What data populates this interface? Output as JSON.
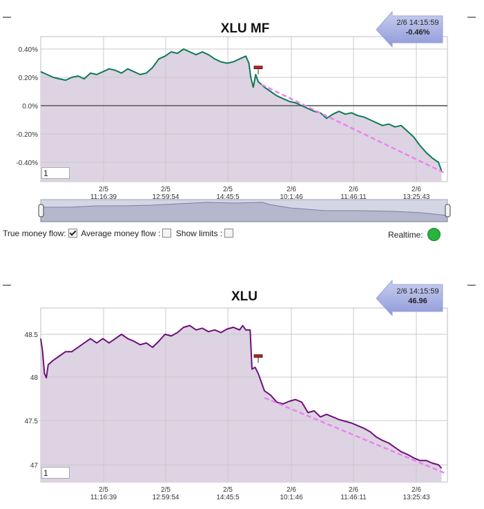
{
  "charts_meta": {
    "x_ticks": [
      {
        "date": "2/5",
        "time": "11:16:39"
      },
      {
        "date": "2/5",
        "time": "12:59:54"
      },
      {
        "date": "2/5",
        "time": "14:45:5"
      },
      {
        "date": "2/6",
        "time": "10:1:46"
      },
      {
        "date": "2/6",
        "time": "11:46:11"
      },
      {
        "date": "2/6",
        "time": "13:25:43"
      }
    ]
  },
  "controls": {
    "true_mf_label": "True money flow:",
    "avg_mf_label": "Average money flow :",
    "show_limits_label": "Show limits :",
    "realtime_label": "Realtime:",
    "true_mf_checked": true,
    "avg_mf_checked": false,
    "show_limits_checked": false,
    "realtime_color": "#27b33c"
  },
  "chart_data": [
    {
      "type": "area",
      "title": "XLU MF",
      "xlabel": "",
      "ylabel": "",
      "yticks": [
        "0.40%",
        "0.20%",
        "0.0%",
        "-0.20%",
        "-0.40%"
      ],
      "ylim": [
        -0.5,
        0.42
      ],
      "line_color": "#0a7a55",
      "fill_color": "#ddd3e3",
      "zero_line": 0,
      "callout": {
        "date_time": "2/6 14:15:59",
        "value": "-0.46%"
      },
      "input_value": "1",
      "points": [
        [
          0,
          0.24
        ],
        [
          0.1,
          0.22
        ],
        [
          0.2,
          0.2
        ],
        [
          0.3,
          0.19
        ],
        [
          0.4,
          0.18
        ],
        [
          0.5,
          0.2
        ],
        [
          0.6,
          0.21
        ],
        [
          0.7,
          0.19
        ],
        [
          0.8,
          0.23
        ],
        [
          0.9,
          0.22
        ],
        [
          1.0,
          0.24
        ],
        [
          1.1,
          0.26
        ],
        [
          1.2,
          0.25
        ],
        [
          1.3,
          0.23
        ],
        [
          1.4,
          0.26
        ],
        [
          1.5,
          0.24
        ],
        [
          1.6,
          0.22
        ],
        [
          1.7,
          0.23
        ],
        [
          1.8,
          0.27
        ],
        [
          1.9,
          0.33
        ],
        [
          2.0,
          0.35
        ],
        [
          2.1,
          0.38
        ],
        [
          2.2,
          0.37
        ],
        [
          2.3,
          0.4
        ],
        [
          2.4,
          0.38
        ],
        [
          2.5,
          0.36
        ],
        [
          2.6,
          0.38
        ],
        [
          2.7,
          0.36
        ],
        [
          2.8,
          0.33
        ],
        [
          2.9,
          0.31
        ],
        [
          3.0,
          0.3
        ],
        [
          3.1,
          0.31
        ],
        [
          3.2,
          0.33
        ],
        [
          3.3,
          0.35
        ],
        [
          3.35,
          0.3
        ],
        [
          3.38,
          0.2
        ],
        [
          3.42,
          0.13
        ],
        [
          3.46,
          0.22
        ],
        [
          3.5,
          0.17
        ],
        [
          3.55,
          0.15
        ],
        [
          3.6,
          0.13
        ],
        [
          3.7,
          0.1
        ],
        [
          3.8,
          0.07
        ],
        [
          3.9,
          0.05
        ],
        [
          4.0,
          0.03
        ],
        [
          4.1,
          0.02
        ],
        [
          4.2,
          0.0
        ],
        [
          4.3,
          -0.02
        ],
        [
          4.4,
          -0.04
        ],
        [
          4.5,
          -0.05
        ],
        [
          4.6,
          -0.09
        ],
        [
          4.7,
          -0.06
        ],
        [
          4.8,
          -0.04
        ],
        [
          4.9,
          -0.06
        ],
        [
          5.0,
          -0.05
        ],
        [
          5.1,
          -0.07
        ],
        [
          5.2,
          -0.08
        ],
        [
          5.3,
          -0.1
        ],
        [
          5.4,
          -0.12
        ],
        [
          5.5,
          -0.14
        ],
        [
          5.6,
          -0.13
        ],
        [
          5.7,
          -0.15
        ],
        [
          5.8,
          -0.14
        ],
        [
          5.9,
          -0.18
        ],
        [
          6.0,
          -0.22
        ],
        [
          6.1,
          -0.28
        ],
        [
          6.2,
          -0.33
        ],
        [
          6.3,
          -0.37
        ],
        [
          6.4,
          -0.4
        ],
        [
          6.45,
          -0.46
        ]
      ],
      "trend": [
        [
          3.55,
          0.15
        ],
        [
          6.52,
          -0.48
        ]
      ],
      "marker": {
        "x": 3.5,
        "y": 0.27
      }
    },
    {
      "type": "area",
      "title": "XLU",
      "xlabel": "",
      "ylabel": "",
      "yticks": [
        "48.5",
        "48",
        "47.5",
        "47"
      ],
      "ylim": [
        46.83,
        48.74
      ],
      "line_color": "#6e0f78",
      "fill_color": "#ddd3e3",
      "callout": {
        "date_time": "2/6 14:15:59",
        "value": "46.96"
      },
      "input_value": "1",
      "points": [
        [
          0,
          48.45
        ],
        [
          0.03,
          48.3
        ],
        [
          0.06,
          48.05
        ],
        [
          0.09,
          48.0
        ],
        [
          0.12,
          48.15
        ],
        [
          0.2,
          48.2
        ],
        [
          0.3,
          48.25
        ],
        [
          0.4,
          48.3
        ],
        [
          0.5,
          48.3
        ],
        [
          0.6,
          48.35
        ],
        [
          0.7,
          48.4
        ],
        [
          0.8,
          48.45
        ],
        [
          0.9,
          48.4
        ],
        [
          1.0,
          48.45
        ],
        [
          1.1,
          48.4
        ],
        [
          1.2,
          48.45
        ],
        [
          1.3,
          48.5
        ],
        [
          1.4,
          48.45
        ],
        [
          1.5,
          48.42
        ],
        [
          1.6,
          48.38
        ],
        [
          1.7,
          48.4
        ],
        [
          1.8,
          48.35
        ],
        [
          1.9,
          48.42
        ],
        [
          2.0,
          48.5
        ],
        [
          2.1,
          48.48
        ],
        [
          2.2,
          48.52
        ],
        [
          2.3,
          48.58
        ],
        [
          2.4,
          48.6
        ],
        [
          2.5,
          48.55
        ],
        [
          2.6,
          48.57
        ],
        [
          2.7,
          48.53
        ],
        [
          2.8,
          48.55
        ],
        [
          2.9,
          48.52
        ],
        [
          3.0,
          48.56
        ],
        [
          3.1,
          48.58
        ],
        [
          3.2,
          48.55
        ],
        [
          3.25,
          48.6
        ],
        [
          3.3,
          48.55
        ],
        [
          3.37,
          48.55
        ],
        [
          3.4,
          48.1
        ],
        [
          3.45,
          48.12
        ],
        [
          3.5,
          48.05
        ],
        [
          3.55,
          47.95
        ],
        [
          3.6,
          47.85
        ],
        [
          3.7,
          47.8
        ],
        [
          3.8,
          47.72
        ],
        [
          3.9,
          47.7
        ],
        [
          4.0,
          47.73
        ],
        [
          4.1,
          47.75
        ],
        [
          4.2,
          47.72
        ],
        [
          4.3,
          47.6
        ],
        [
          4.4,
          47.62
        ],
        [
          4.5,
          47.55
        ],
        [
          4.6,
          47.58
        ],
        [
          4.7,
          47.55
        ],
        [
          4.8,
          47.52
        ],
        [
          4.9,
          47.5
        ],
        [
          5.0,
          47.48
        ],
        [
          5.1,
          47.45
        ],
        [
          5.2,
          47.42
        ],
        [
          5.3,
          47.38
        ],
        [
          5.4,
          47.32
        ],
        [
          5.5,
          47.28
        ],
        [
          5.6,
          47.25
        ],
        [
          5.7,
          47.2
        ],
        [
          5.8,
          47.15
        ],
        [
          5.9,
          47.12
        ],
        [
          6.0,
          47.08
        ],
        [
          6.1,
          47.05
        ],
        [
          6.2,
          47.05
        ],
        [
          6.3,
          47.02
        ],
        [
          6.4,
          47.0
        ],
        [
          6.45,
          46.96
        ]
      ],
      "trend": [
        [
          3.6,
          47.77
        ],
        [
          6.52,
          46.9
        ]
      ],
      "marker": {
        "x": 3.5,
        "y": 48.25
      }
    }
  ]
}
